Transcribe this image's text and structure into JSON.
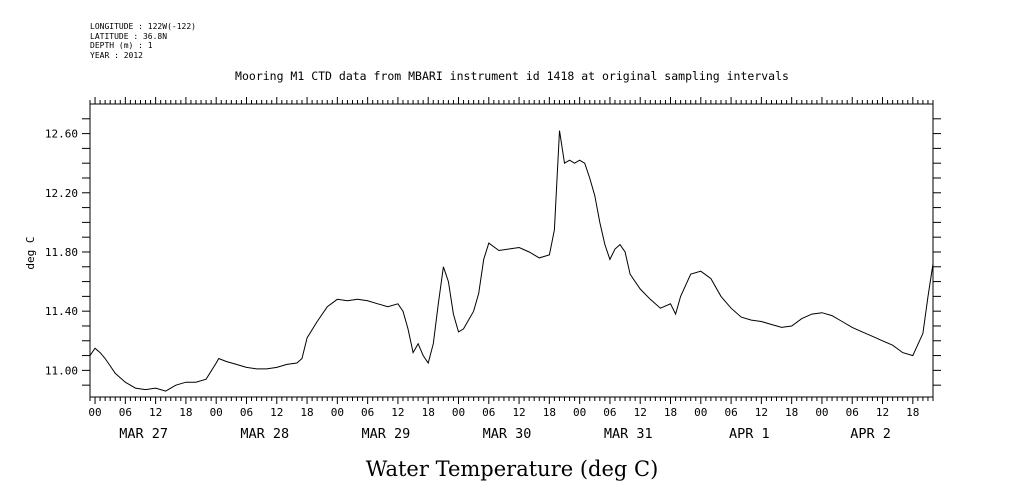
{
  "header": {
    "longitude": "LONGITUDE : 122W(-122)",
    "latitude": "LATITUDE : 36.8N",
    "depth": "DEPTH (m) : 1",
    "year": "YEAR : 2012"
  },
  "chart_data": {
    "type": "line",
    "title": "Mooring M1 CTD data from MBARI instrument id 1418 at original sampling intervals",
    "xlabel": "Water Temperature (deg C)",
    "ylabel": "deg C",
    "ylim": [
      10.82,
      12.8
    ],
    "xlim": [
      "2012-03-26T23:00",
      "2012-04-02T22:00"
    ],
    "yticks": [
      "11.00",
      "11.40",
      "11.80",
      "12.20",
      "12.60"
    ],
    "hour_ticks": [
      "00",
      "06",
      "12",
      "18"
    ],
    "day_labels": [
      "MAR 27",
      "MAR 28",
      "MAR 29",
      "MAR 30",
      "MAR 31",
      "APR  1",
      "APR  2"
    ],
    "grid": false,
    "series": [
      {
        "color": "#000000",
        "x": [
          "2012-03-26T23:00",
          "2012-03-27T00:00",
          "2012-03-27T01:00",
          "2012-03-27T02:00",
          "2012-03-27T03:00",
          "2012-03-27T04:00",
          "2012-03-27T06:00",
          "2012-03-27T08:00",
          "2012-03-27T10:00",
          "2012-03-27T12:00",
          "2012-03-27T14:00",
          "2012-03-27T16:00",
          "2012-03-27T18:00",
          "2012-03-27T20:00",
          "2012-03-27T22:00",
          "2012-03-28T00:00",
          "2012-03-28T00:30",
          "2012-03-28T02:00",
          "2012-03-28T04:00",
          "2012-03-28T06:00",
          "2012-03-28T08:00",
          "2012-03-28T10:00",
          "2012-03-28T12:00",
          "2012-03-28T14:00",
          "2012-03-28T16:00",
          "2012-03-28T17:00",
          "2012-03-28T18:00",
          "2012-03-28T20:00",
          "2012-03-28T22:00",
          "2012-03-29T00:00",
          "2012-03-29T02:00",
          "2012-03-29T04:00",
          "2012-03-29T06:00",
          "2012-03-29T08:00",
          "2012-03-29T10:00",
          "2012-03-29T12:00",
          "2012-03-29T13:00",
          "2012-03-29T14:00",
          "2012-03-29T15:00",
          "2012-03-29T16:00",
          "2012-03-29T17:00",
          "2012-03-29T18:00",
          "2012-03-29T19:00",
          "2012-03-29T20:00",
          "2012-03-29T21:00",
          "2012-03-29T22:00",
          "2012-03-29T23:00",
          "2012-03-30T00:00",
          "2012-03-30T01:00",
          "2012-03-30T03:00",
          "2012-03-30T04:00",
          "2012-03-30T05:00",
          "2012-03-30T06:00",
          "2012-03-30T08:00",
          "2012-03-30T10:00",
          "2012-03-30T12:00",
          "2012-03-30T14:00",
          "2012-03-30T16:00",
          "2012-03-30T18:00",
          "2012-03-30T19:00",
          "2012-03-30T20:00",
          "2012-03-30T21:00",
          "2012-03-30T22:00",
          "2012-03-30T23:00",
          "2012-03-31T00:00",
          "2012-03-31T01:00",
          "2012-03-31T02:00",
          "2012-03-31T03:00",
          "2012-03-31T04:00",
          "2012-03-31T05:00",
          "2012-03-31T06:00",
          "2012-03-31T07:00",
          "2012-03-31T08:00",
          "2012-03-31T09:00",
          "2012-03-31T10:00",
          "2012-03-31T12:00",
          "2012-03-31T14:00",
          "2012-03-31T16:00",
          "2012-03-31T18:00",
          "2012-03-31T19:00",
          "2012-03-31T20:00",
          "2012-03-31T22:00",
          "2012-04-01T00:00",
          "2012-04-01T02:00",
          "2012-04-01T04:00",
          "2012-04-01T06:00",
          "2012-04-01T08:00",
          "2012-04-01T10:00",
          "2012-04-01T12:00",
          "2012-04-01T14:00",
          "2012-04-01T16:00",
          "2012-04-01T18:00",
          "2012-04-01T20:00",
          "2012-04-01T22:00",
          "2012-04-02T00:00",
          "2012-04-02T02:00",
          "2012-04-02T04:00",
          "2012-04-02T06:00",
          "2012-04-02T08:00",
          "2012-04-02T10:00",
          "2012-04-02T12:00",
          "2012-04-02T14:00",
          "2012-04-02T16:00",
          "2012-04-02T18:00",
          "2012-04-02T20:00",
          "2012-04-02T21:00",
          "2012-04-02T22:00"
        ],
        "y": [
          11.1,
          11.15,
          11.12,
          11.08,
          11.03,
          10.98,
          10.92,
          10.88,
          10.87,
          10.88,
          10.86,
          10.9,
          10.92,
          10.92,
          10.94,
          11.05,
          11.08,
          11.06,
          11.04,
          11.02,
          11.01,
          11.01,
          11.02,
          11.04,
          11.05,
          11.08,
          11.22,
          11.33,
          11.43,
          11.48,
          11.47,
          11.48,
          11.47,
          11.45,
          11.43,
          11.45,
          11.4,
          11.28,
          11.12,
          11.18,
          11.1,
          11.05,
          11.18,
          11.45,
          11.7,
          11.6,
          11.38,
          11.26,
          11.28,
          11.4,
          11.52,
          11.75,
          11.86,
          11.81,
          11.82,
          11.83,
          11.8,
          11.76,
          11.78,
          11.95,
          12.62,
          12.4,
          12.42,
          12.4,
          12.42,
          12.4,
          12.3,
          12.18,
          12.0,
          11.85,
          11.75,
          11.82,
          11.85,
          11.8,
          11.65,
          11.55,
          11.48,
          11.42,
          11.45,
          11.38,
          11.5,
          11.65,
          11.67,
          11.62,
          11.5,
          11.42,
          11.36,
          11.34,
          11.33,
          11.31,
          11.29,
          11.3,
          11.35,
          11.38,
          11.39,
          11.37,
          11.33,
          11.29,
          11.26,
          11.23,
          11.2,
          11.17,
          11.12,
          11.1,
          11.25,
          11.5,
          11.72
        ]
      }
    ]
  }
}
